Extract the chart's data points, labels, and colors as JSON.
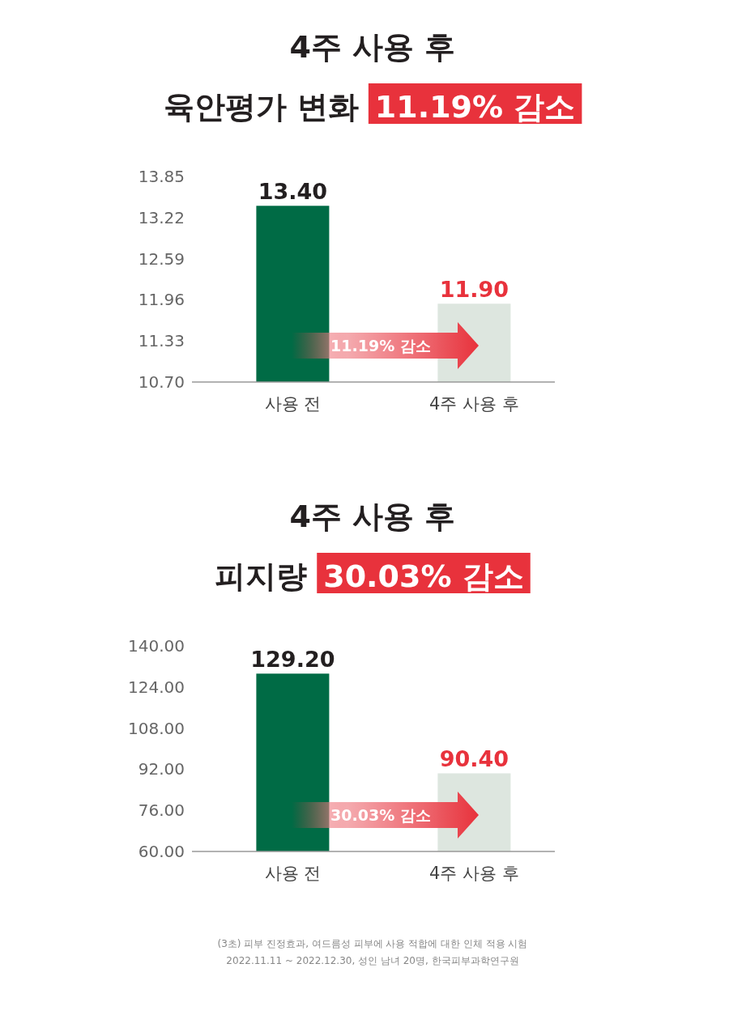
{
  "chart_data": [
    {
      "type": "bar",
      "title": "4주 사용 후",
      "subtitle": "육안평가 변화",
      "categories": [
        "사용 전",
        "4주 사용 후"
      ],
      "values": [
        13.4,
        11.9
      ],
      "value_labels": [
        "13.40",
        "11.90"
      ],
      "colors": [
        "#006b45",
        "#dde6df"
      ],
      "ylim": [
        10.7,
        13.85
      ],
      "yticks": [
        {
          "value": 10.7,
          "label": "10.70"
        },
        11.33,
        11.96,
        12.59,
        13.22,
        13.85
      ],
      "annotations": [
        "11.19% 감소",
        "11.19% 감소"
      ]
    },
    {
      "type": "bar",
      "title": "4주 사용 후",
      "subtitle": "피지량",
      "categories": [
        "사용 전",
        "4주 사용 후"
      ],
      "values": [
        129.2,
        90.4
      ],
      "value_labels": [
        "129.20",
        "90.40"
      ],
      "colors": [
        "#006b45",
        "#dde6df"
      ],
      "ylim": [
        60,
        140
      ],
      "yticks": [
        {
          "value": 60,
          "label": "60.00"
        },
        {
          "value": 76,
          "label": "76.00"
        },
        {
          "value": 92,
          "label": "92.00"
        },
        {
          "value": 108,
          "label": "108.00"
        },
        {
          "value": 124,
          "label": "124.00"
        },
        {
          "value": 140,
          "label": "140.00"
        }
      ],
      "annotations": [
        "30.03% 감소",
        "30.03% 감소",
        "(3초) 피부 진정효과, 여드름성 피부에 사용 적합에 대한 인체 적용 시험",
        "2022.11.11 ~ 2022.12.30, 성인 남녀 20명, 한국피부과학연구원"
      ]
    }
  ]
}
